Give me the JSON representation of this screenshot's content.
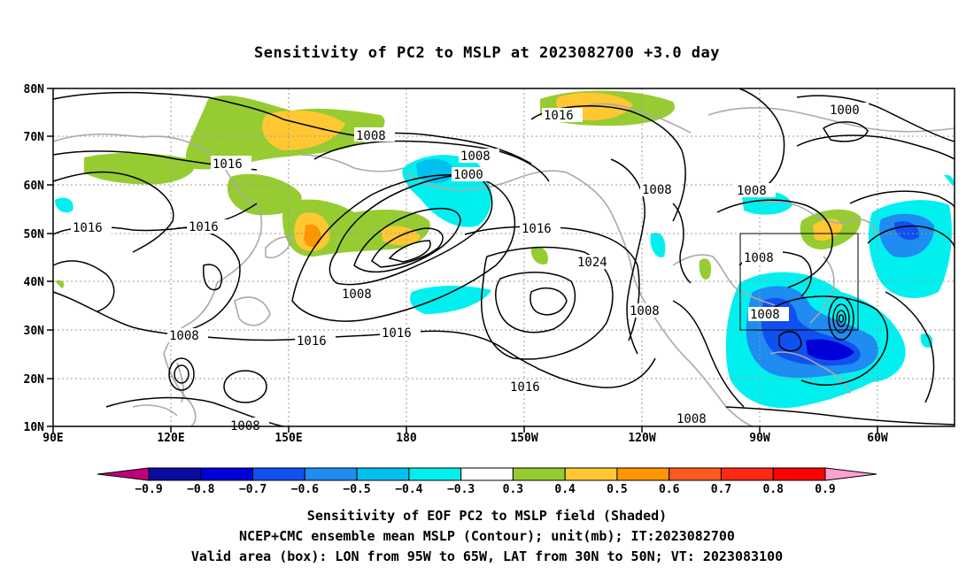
{
  "title": "Sensitivity of PC2 to MSLP at 2023082700 +3.0 day",
  "lat_labels": [
    "80N",
    "70N",
    "60N",
    "50N",
    "40N",
    "30N",
    "20N",
    "10N"
  ],
  "lon_labels": [
    "90E",
    "120E",
    "150E",
    "180",
    "150W",
    "120W",
    "90W",
    "60W"
  ],
  "contour_labels": [
    {
      "text": "1008"
    },
    {
      "text": "1016"
    },
    {
      "text": "1016"
    },
    {
      "text": "1016"
    },
    {
      "text": "1008"
    },
    {
      "text": "1000"
    },
    {
      "text": "1008"
    },
    {
      "text": "1016"
    },
    {
      "text": "1024"
    },
    {
      "text": "1008"
    },
    {
      "text": "1016"
    },
    {
      "text": "1016"
    },
    {
      "text": "1016"
    },
    {
      "text": "1008"
    },
    {
      "text": "1008"
    },
    {
      "text": "1000"
    },
    {
      "text": "1008"
    },
    {
      "text": "1008"
    },
    {
      "text": "1016"
    },
    {
      "text": "1008"
    },
    {
      "text": "1008"
    },
    {
      "text": "1008"
    }
  ],
  "colorbar": {
    "labels": [
      "−0.9",
      "−0.8",
      "−0.7",
      "−0.6",
      "−0.5",
      "−0.4",
      "−0.3",
      "0.3",
      "0.4",
      "0.5",
      "0.6",
      "0.7",
      "0.8",
      "0.9"
    ],
    "colors": [
      "#c0007a",
      "#0a0aa0",
      "#0000d8",
      "#1050f0",
      "#1e8cf0",
      "#00c0f0",
      "#00f0f0",
      "#ffffff",
      "#96cc32",
      "#ffc832",
      "#ff9600",
      "#ff5a1e",
      "#ff2814",
      "#ff0000",
      "#ffa0d2"
    ]
  },
  "valid_box": {
    "lon_from": "95W",
    "lon_to": "65W",
    "lat_from": "30N",
    "lat_to": "50N"
  },
  "captions": {
    "line1": "Sensitivity of EOF PC2 to MSLP field (Shaded)",
    "line2": "NCEP+CMC ensemble mean MSLP (Contour); unit(mb); IT:2023082700",
    "line3": "Valid area (box): LON from 95W to 65W, LAT from 30N to 50N; VT: 2023083100"
  }
}
